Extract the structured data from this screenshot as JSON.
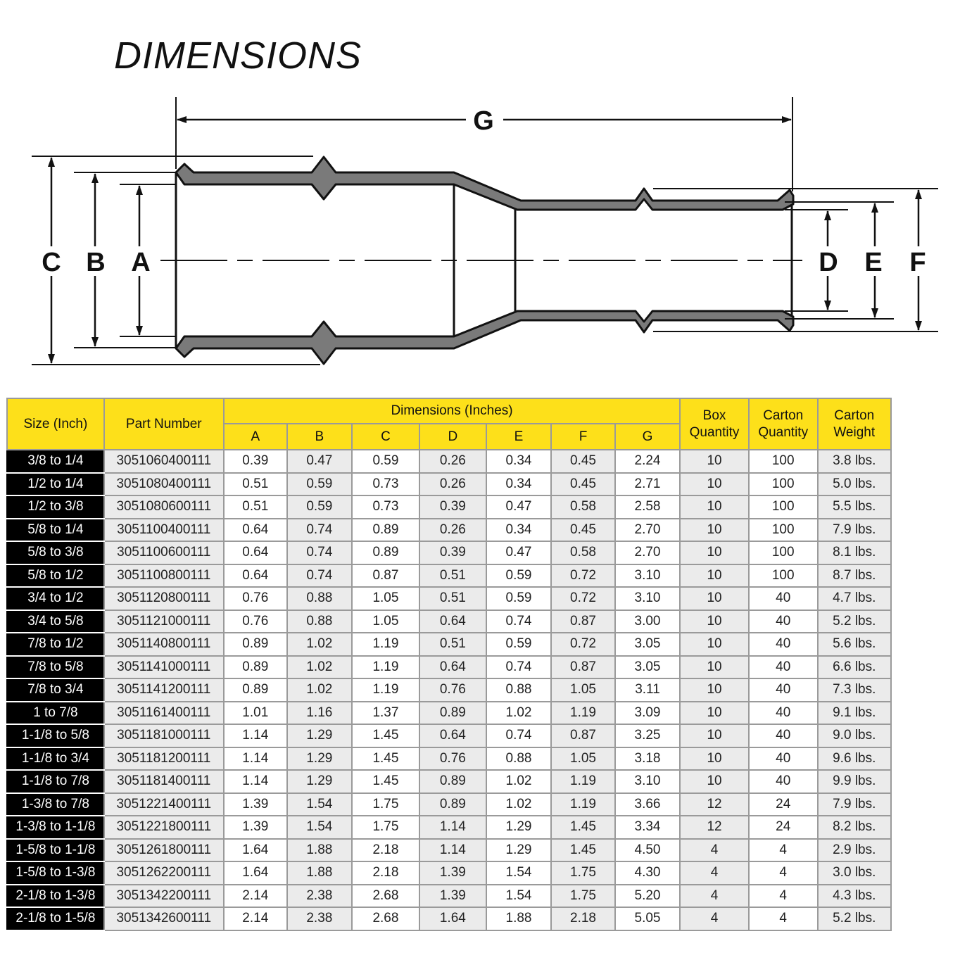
{
  "title": "DIMENSIONS",
  "diagram": {
    "labels": {
      "A": "A",
      "B": "B",
      "C": "C",
      "D": "D",
      "E": "E",
      "F": "F",
      "G": "G"
    }
  },
  "colors": {
    "header": "#fde01a",
    "size_cell": "#000000",
    "shade": "#ebebeb",
    "wall": "#7a7a7a"
  },
  "table": {
    "headers": {
      "size": "Size (Inch)",
      "part": "Part Number",
      "dims": "Dimensions (Inches)",
      "cols": [
        "A",
        "B",
        "C",
        "D",
        "E",
        "F",
        "G"
      ],
      "box": "Box Quantity",
      "carton_qty": "Carton Quantity",
      "carton_wt": "Carton Weight"
    },
    "rows": [
      [
        "3/8 to 1/4",
        "3051060400111",
        "0.39",
        "0.47",
        "0.59",
        "0.26",
        "0.34",
        "0.45",
        "2.24",
        "10",
        "100",
        "3.8 lbs."
      ],
      [
        "1/2 to 1/4",
        "3051080400111",
        "0.51",
        "0.59",
        "0.73",
        "0.26",
        "0.34",
        "0.45",
        "2.71",
        "10",
        "100",
        "5.0 lbs."
      ],
      [
        "1/2 to 3/8",
        "3051080600111",
        "0.51",
        "0.59",
        "0.73",
        "0.39",
        "0.47",
        "0.58",
        "2.58",
        "10",
        "100",
        "5.5 lbs."
      ],
      [
        "5/8 to 1/4",
        "3051100400111",
        "0.64",
        "0.74",
        "0.89",
        "0.26",
        "0.34",
        "0.45",
        "2.70",
        "10",
        "100",
        "7.9 lbs."
      ],
      [
        "5/8 to 3/8",
        "3051100600111",
        "0.64",
        "0.74",
        "0.89",
        "0.39",
        "0.47",
        "0.58",
        "2.70",
        "10",
        "100",
        "8.1 lbs."
      ],
      [
        "5/8 to 1/2",
        "3051100800111",
        "0.64",
        "0.74",
        "0.87",
        "0.51",
        "0.59",
        "0.72",
        "3.10",
        "10",
        "100",
        "8.7 lbs."
      ],
      [
        "3/4 to 1/2",
        "3051120800111",
        "0.76",
        "0.88",
        "1.05",
        "0.51",
        "0.59",
        "0.72",
        "3.10",
        "10",
        "40",
        "4.7 lbs."
      ],
      [
        "3/4 to 5/8",
        "3051121000111",
        "0.76",
        "0.88",
        "1.05",
        "0.64",
        "0.74",
        "0.87",
        "3.00",
        "10",
        "40",
        "5.2 lbs."
      ],
      [
        "7/8 to 1/2",
        "3051140800111",
        "0.89",
        "1.02",
        "1.19",
        "0.51",
        "0.59",
        "0.72",
        "3.05",
        "10",
        "40",
        "5.6 lbs."
      ],
      [
        "7/8 to 5/8",
        "3051141000111",
        "0.89",
        "1.02",
        "1.19",
        "0.64",
        "0.74",
        "0.87",
        "3.05",
        "10",
        "40",
        "6.6 lbs."
      ],
      [
        "7/8 to 3/4",
        "3051141200111",
        "0.89",
        "1.02",
        "1.19",
        "0.76",
        "0.88",
        "1.05",
        "3.11",
        "10",
        "40",
        "7.3 lbs."
      ],
      [
        "1 to 7/8",
        "3051161400111",
        "1.01",
        "1.16",
        "1.37",
        "0.89",
        "1.02",
        "1.19",
        "3.09",
        "10",
        "40",
        "9.1 lbs."
      ],
      [
        "1-1/8 to 5/8",
        "3051181000111",
        "1.14",
        "1.29",
        "1.45",
        "0.64",
        "0.74",
        "0.87",
        "3.25",
        "10",
        "40",
        "9.0 lbs."
      ],
      [
        "1-1/8 to 3/4",
        "3051181200111",
        "1.14",
        "1.29",
        "1.45",
        "0.76",
        "0.88",
        "1.05",
        "3.18",
        "10",
        "40",
        "9.6 lbs."
      ],
      [
        "1-1/8 to 7/8",
        "3051181400111",
        "1.14",
        "1.29",
        "1.45",
        "0.89",
        "1.02",
        "1.19",
        "3.10",
        "10",
        "40",
        "9.9 lbs."
      ],
      [
        "1-3/8 to 7/8",
        "3051221400111",
        "1.39",
        "1.54",
        "1.75",
        "0.89",
        "1.02",
        "1.19",
        "3.66",
        "12",
        "24",
        "7.9 lbs."
      ],
      [
        "1-3/8 to 1-1/8",
        "3051221800111",
        "1.39",
        "1.54",
        "1.75",
        "1.14",
        "1.29",
        "1.45",
        "3.34",
        "12",
        "24",
        "8.2 lbs."
      ],
      [
        "1-5/8 to 1-1/8",
        "3051261800111",
        "1.64",
        "1.88",
        "2.18",
        "1.14",
        "1.29",
        "1.45",
        "4.50",
        "4",
        "4",
        "2.9 lbs."
      ],
      [
        "1-5/8 to 1-3/8",
        "3051262200111",
        "1.64",
        "1.88",
        "2.18",
        "1.39",
        "1.54",
        "1.75",
        "4.30",
        "4",
        "4",
        "3.0 lbs."
      ],
      [
        "2-1/8 to 1-3/8",
        "3051342200111",
        "2.14",
        "2.38",
        "2.68",
        "1.39",
        "1.54",
        "1.75",
        "5.20",
        "4",
        "4",
        "4.3 lbs."
      ],
      [
        "2-1/8 to 1-5/8",
        "3051342600111",
        "2.14",
        "2.38",
        "2.68",
        "1.64",
        "1.88",
        "2.18",
        "5.05",
        "4",
        "4",
        "5.2 lbs."
      ]
    ]
  }
}
